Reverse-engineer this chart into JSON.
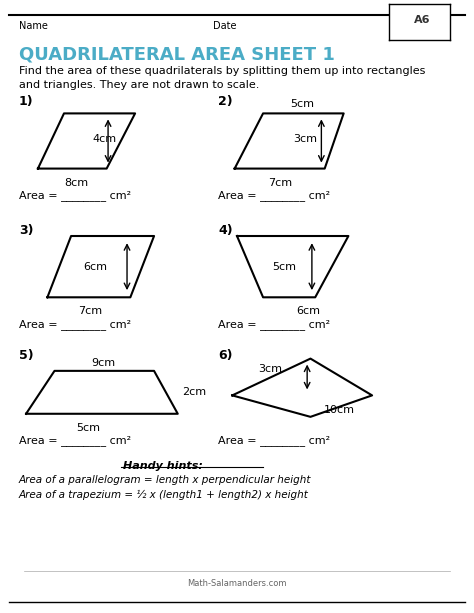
{
  "title": "QUADRILATERAL AREA SHEET 1",
  "title_color": "#4BACC6",
  "instructions": "Find the area of these quadrilaterals by splitting them up into rectangles\nand triangles. They are not drawn to scale.",
  "bg_color": "#FFFFFF",
  "text_color": "#000000",
  "hints_title": "Handy hints:",
  "hint1": "Area of a parallelogram = length x perpendicular height",
  "hint2": "Area of a trapezium = ½ x (length1 + length2) x height",
  "watermark": "Math-Salamanders.com"
}
